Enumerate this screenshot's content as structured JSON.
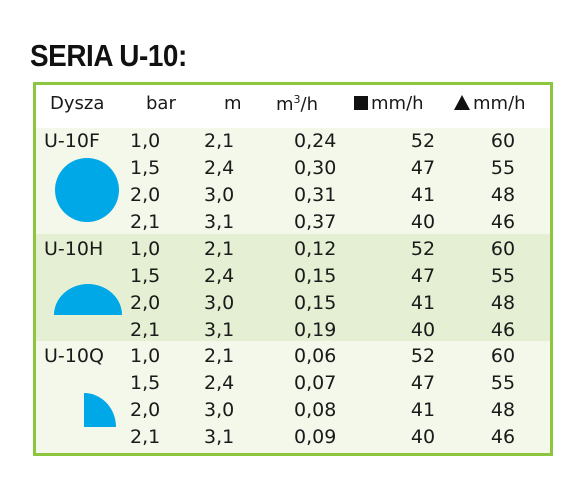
{
  "title": "SERIA U-10:",
  "header": {
    "nozzle": "Dysza",
    "pressure": "bar",
    "radius": "m",
    "flow_base": "m",
    "flow_exp": "3",
    "flow_tail": "/h",
    "square_rate": "mm/h",
    "triangle_rate": "mm/h"
  },
  "groups": [
    {
      "nozzle": "U-10F",
      "shape_icon": "full-circle-icon",
      "color": "#00a8e8",
      "rows": [
        {
          "bar": "1,0",
          "m": "2,1",
          "flow": "0,24",
          "square": "52",
          "triangle": "60"
        },
        {
          "bar": "1,5",
          "m": "2,4",
          "flow": "0,30",
          "square": "47",
          "triangle": "55"
        },
        {
          "bar": "2,0",
          "m": "3,0",
          "flow": "0,31",
          "square": "41",
          "triangle": "48"
        },
        {
          "bar": "2,1",
          "m": "3,1",
          "flow": "0,37",
          "square": "40",
          "triangle": "46"
        }
      ]
    },
    {
      "nozzle": "U-10H",
      "shape_icon": "half-circle-icon",
      "color": "#00a8e8",
      "rows": [
        {
          "bar": "1,0",
          "m": "2,1",
          "flow": "0,12",
          "square": "52",
          "triangle": "60"
        },
        {
          "bar": "1,5",
          "m": "2,4",
          "flow": "0,15",
          "square": "47",
          "triangle": "55"
        },
        {
          "bar": "2,0",
          "m": "3,0",
          "flow": "0,15",
          "square": "41",
          "triangle": "48"
        },
        {
          "bar": "2,1",
          "m": "3,1",
          "flow": "0,19",
          "square": "40",
          "triangle": "46"
        }
      ]
    },
    {
      "nozzle": "U-10Q",
      "shape_icon": "quarter-circle-icon",
      "color": "#00a8e8",
      "rows": [
        {
          "bar": "1,0",
          "m": "2,1",
          "flow": "0,06",
          "square": "52",
          "triangle": "60"
        },
        {
          "bar": "1,5",
          "m": "2,4",
          "flow": "0,07",
          "square": "47",
          "triangle": "55"
        },
        {
          "bar": "2,0",
          "m": "3,0",
          "flow": "0,08",
          "square": "41",
          "triangle": "48"
        },
        {
          "bar": "2,1",
          "m": "3,1",
          "flow": "0,09",
          "square": "40",
          "triangle": "46"
        }
      ]
    }
  ],
  "colors": {
    "frame": "#8cc63f",
    "shape": "#00a8e8"
  }
}
